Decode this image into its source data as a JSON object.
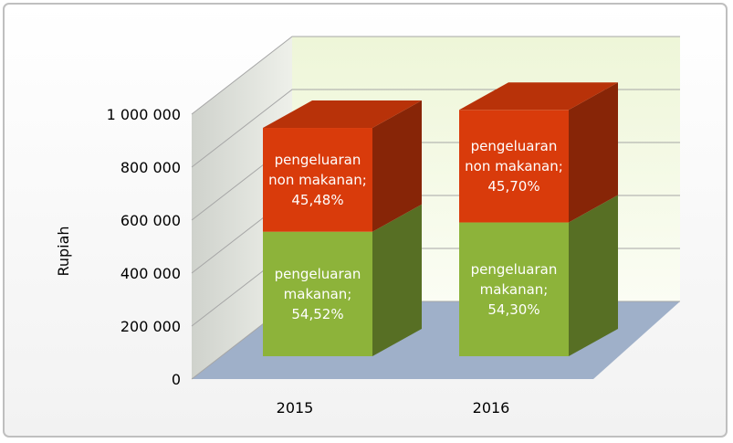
{
  "chart_data": {
    "type": "bar3d_stacked",
    "categories": [
      "2015",
      "2016"
    ],
    "y_label": "Rupiah",
    "ylim": [
      0,
      1000000
    ],
    "yticks": [
      {
        "value": 0,
        "label": "0"
      },
      {
        "value": 200000,
        "label": "200 000"
      },
      {
        "value": 400000,
        "label": "400 000"
      },
      {
        "value": 600000,
        "label": "600 000"
      },
      {
        "value": 800000,
        "label": "800 000"
      },
      {
        "value": 1000000,
        "label": "1 000 000"
      }
    ],
    "grid": true,
    "series": [
      {
        "name": "pengeluaran makanan",
        "color": "#8db33a",
        "values": [
          470000,
          505000
        ],
        "value_labels": [
          [
            "pengeluaran",
            "makanan;",
            "54,52%"
          ],
          [
            "pengeluaran",
            "makanan;",
            "54,30%"
          ]
        ]
      },
      {
        "name": "pengeluaran non makanan",
        "color": "#d93b0b",
        "values": [
          392000,
          425000
        ],
        "value_labels": [
          [
            "pengeluaran",
            "non makanan;",
            "45,48%"
          ],
          [
            "pengeluaran",
            "non makanan;",
            "45,70%"
          ]
        ]
      }
    ]
  }
}
